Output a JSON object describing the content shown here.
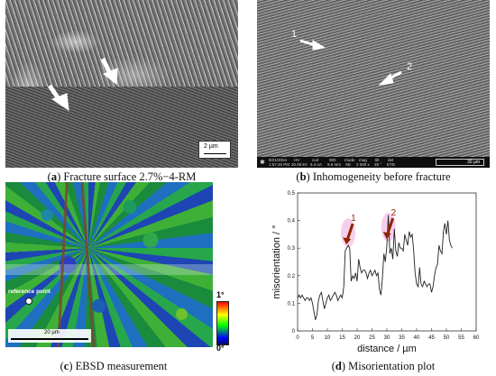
{
  "panels": {
    "a": {
      "letter": "a",
      "caption": "Fracture surface 2.7%−4-RM",
      "scale_label": "2 µm"
    },
    "b": {
      "letter": "b",
      "caption": "Inhomogeneity before fracture",
      "arrow_labels": [
        "1",
        "2"
      ],
      "info_fields": [
        "9/21/2024",
        "HV",
        "curr",
        "WD",
        "mode",
        "mag",
        "tilt",
        "det"
      ],
      "info_values": [
        "1:57:20 PM",
        "20.00 kV",
        "6.4 nA",
        "9.6 mm",
        "SE",
        "2 000 x",
        "25 °",
        "ETD"
      ],
      "scale_label": "30 µm"
    },
    "c": {
      "letter": "c",
      "caption": "EBSD measurement",
      "reference_label": "reference point",
      "scale_label": "20 µm",
      "legend_max": "1°",
      "legend_min": "0°"
    },
    "d": {
      "letter": "d",
      "caption": "Misorientation plot"
    }
  },
  "colors": {
    "arrow_red": "#8b2500",
    "highlight": "#f4c3e8",
    "line": "#222222"
  },
  "chart_data": {
    "type": "line",
    "xlabel": "distance / µm",
    "ylabel": "misorientation / °",
    "xlim": [
      0,
      60
    ],
    "ylim": [
      0,
      0.5
    ],
    "xticks": [
      0,
      5,
      10,
      15,
      20,
      25,
      30,
      35,
      40,
      45,
      50,
      55,
      60
    ],
    "yticks": [
      0,
      0.1,
      0.2,
      0.3,
      0.4,
      0.5
    ],
    "grid": false,
    "annotations": [
      {
        "label": "1",
        "x": 17.0,
        "y": 0.31
      },
      {
        "label": "2",
        "x": 30.5,
        "y": 0.33
      }
    ],
    "x": [
      0.1,
      0.5,
      1,
      1.5,
      2,
      2.5,
      3,
      3.5,
      4,
      4.5,
      5,
      5.5,
      6,
      6.5,
      7,
      7.5,
      8,
      8.5,
      9,
      9.5,
      10,
      10.5,
      11,
      11.5,
      12,
      12.5,
      13,
      13.5,
      14,
      14.5,
      15,
      15.5,
      16,
      16.5,
      17,
      17.5,
      18,
      18.5,
      19,
      19.5,
      20,
      20.5,
      21,
      21.5,
      22,
      22.5,
      23,
      23.5,
      24,
      24.5,
      25,
      25.5,
      26,
      26.5,
      27,
      27.5,
      28,
      28.5,
      29,
      29.5,
      30,
      30.5,
      31,
      31.5,
      32,
      32.5,
      33,
      33.5,
      34,
      34.5,
      35,
      35.5,
      36,
      36.5,
      37,
      37.5,
      38,
      38.5,
      39,
      39.5,
      40,
      40.5,
      41,
      41.5,
      42,
      42.5,
      43,
      43.5,
      44,
      44.5,
      45,
      45.5,
      46,
      46.5,
      47,
      47.5,
      48,
      48.5,
      49,
      49.5,
      50,
      50.5,
      51,
      51.5,
      52
    ],
    "y": [
      0.12,
      0.13,
      0.12,
      0.13,
      0.12,
      0.11,
      0.12,
      0.12,
      0.11,
      0.12,
      0.1,
      0.07,
      0.04,
      0.06,
      0.11,
      0.13,
      0.14,
      0.11,
      0.08,
      0.1,
      0.12,
      0.13,
      0.11,
      0.12,
      0.13,
      0.14,
      0.13,
      0.11,
      0.12,
      0.13,
      0.12,
      0.16,
      0.29,
      0.3,
      0.31,
      0.3,
      0.18,
      0.2,
      0.19,
      0.21,
      0.18,
      0.26,
      0.23,
      0.21,
      0.22,
      0.22,
      0.21,
      0.19,
      0.21,
      0.22,
      0.2,
      0.21,
      0.22,
      0.2,
      0.21,
      0.15,
      0.13,
      0.19,
      0.28,
      0.25,
      0.31,
      0.42,
      0.28,
      0.3,
      0.26,
      0.37,
      0.29,
      0.27,
      0.32,
      0.3,
      0.3,
      0.29,
      0.35,
      0.33,
      0.31,
      0.36,
      0.34,
      0.35,
      0.29,
      0.21,
      0.17,
      0.16,
      0.23,
      0.17,
      0.16,
      0.18,
      0.17,
      0.16,
      0.17,
      0.17,
      0.14,
      0.16,
      0.2,
      0.23,
      0.24,
      0.31,
      0.29,
      0.28,
      0.36,
      0.39,
      0.35,
      0.4,
      0.33,
      0.31,
      0.3
    ]
  }
}
